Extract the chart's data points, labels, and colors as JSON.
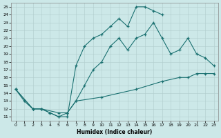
{
  "xlabel": "Humidex (Indice chaleur)",
  "bg_color": "#cce8e8",
  "grid_color": "#b0cccc",
  "line_color": "#1a7070",
  "xlim": [
    -0.5,
    23.5
  ],
  "ylim": [
    10.5,
    25.5
  ],
  "xticks": [
    0,
    1,
    2,
    3,
    4,
    5,
    6,
    7,
    8,
    9,
    10,
    11,
    12,
    13,
    14,
    15,
    16,
    17,
    18,
    19,
    20,
    21,
    22,
    23
  ],
  "yticks": [
    11,
    12,
    13,
    14,
    15,
    16,
    17,
    18,
    19,
    20,
    21,
    22,
    23,
    24,
    25
  ],
  "line1_x": [
    0,
    1,
    2,
    3,
    4,
    5,
    6,
    7,
    8,
    9,
    10,
    11,
    12,
    13,
    14,
    15,
    16,
    17
  ],
  "line1_y": [
    14.5,
    13.0,
    12.0,
    12.0,
    11.5,
    11.0,
    11.0,
    17.5,
    20.0,
    21.0,
    21.5,
    22.5,
    23.5,
    22.5,
    25.0,
    25.0,
    24.5,
    24.0
  ],
  "line2_x": [
    0,
    2,
    3,
    4,
    5,
    6,
    7,
    8,
    9,
    10,
    11,
    12,
    13,
    14,
    15,
    16,
    17,
    18,
    19,
    20,
    21,
    22,
    23
  ],
  "line2_y": [
    14.5,
    12.0,
    12.0,
    11.5,
    11.0,
    11.5,
    13.0,
    15.0,
    17.0,
    18.0,
    20.0,
    21.0,
    19.5,
    21.0,
    21.5,
    23.0,
    21.0,
    19.0,
    19.5,
    21.0,
    19.0,
    18.5,
    17.5
  ],
  "line3_x": [
    0,
    2,
    3,
    5,
    6,
    7,
    10,
    14,
    17,
    19,
    20,
    21,
    22,
    23
  ],
  "line3_y": [
    14.5,
    12.0,
    12.0,
    11.5,
    11.5,
    13.0,
    13.5,
    14.5,
    15.5,
    16.0,
    16.0,
    16.5,
    16.5,
    16.5
  ]
}
